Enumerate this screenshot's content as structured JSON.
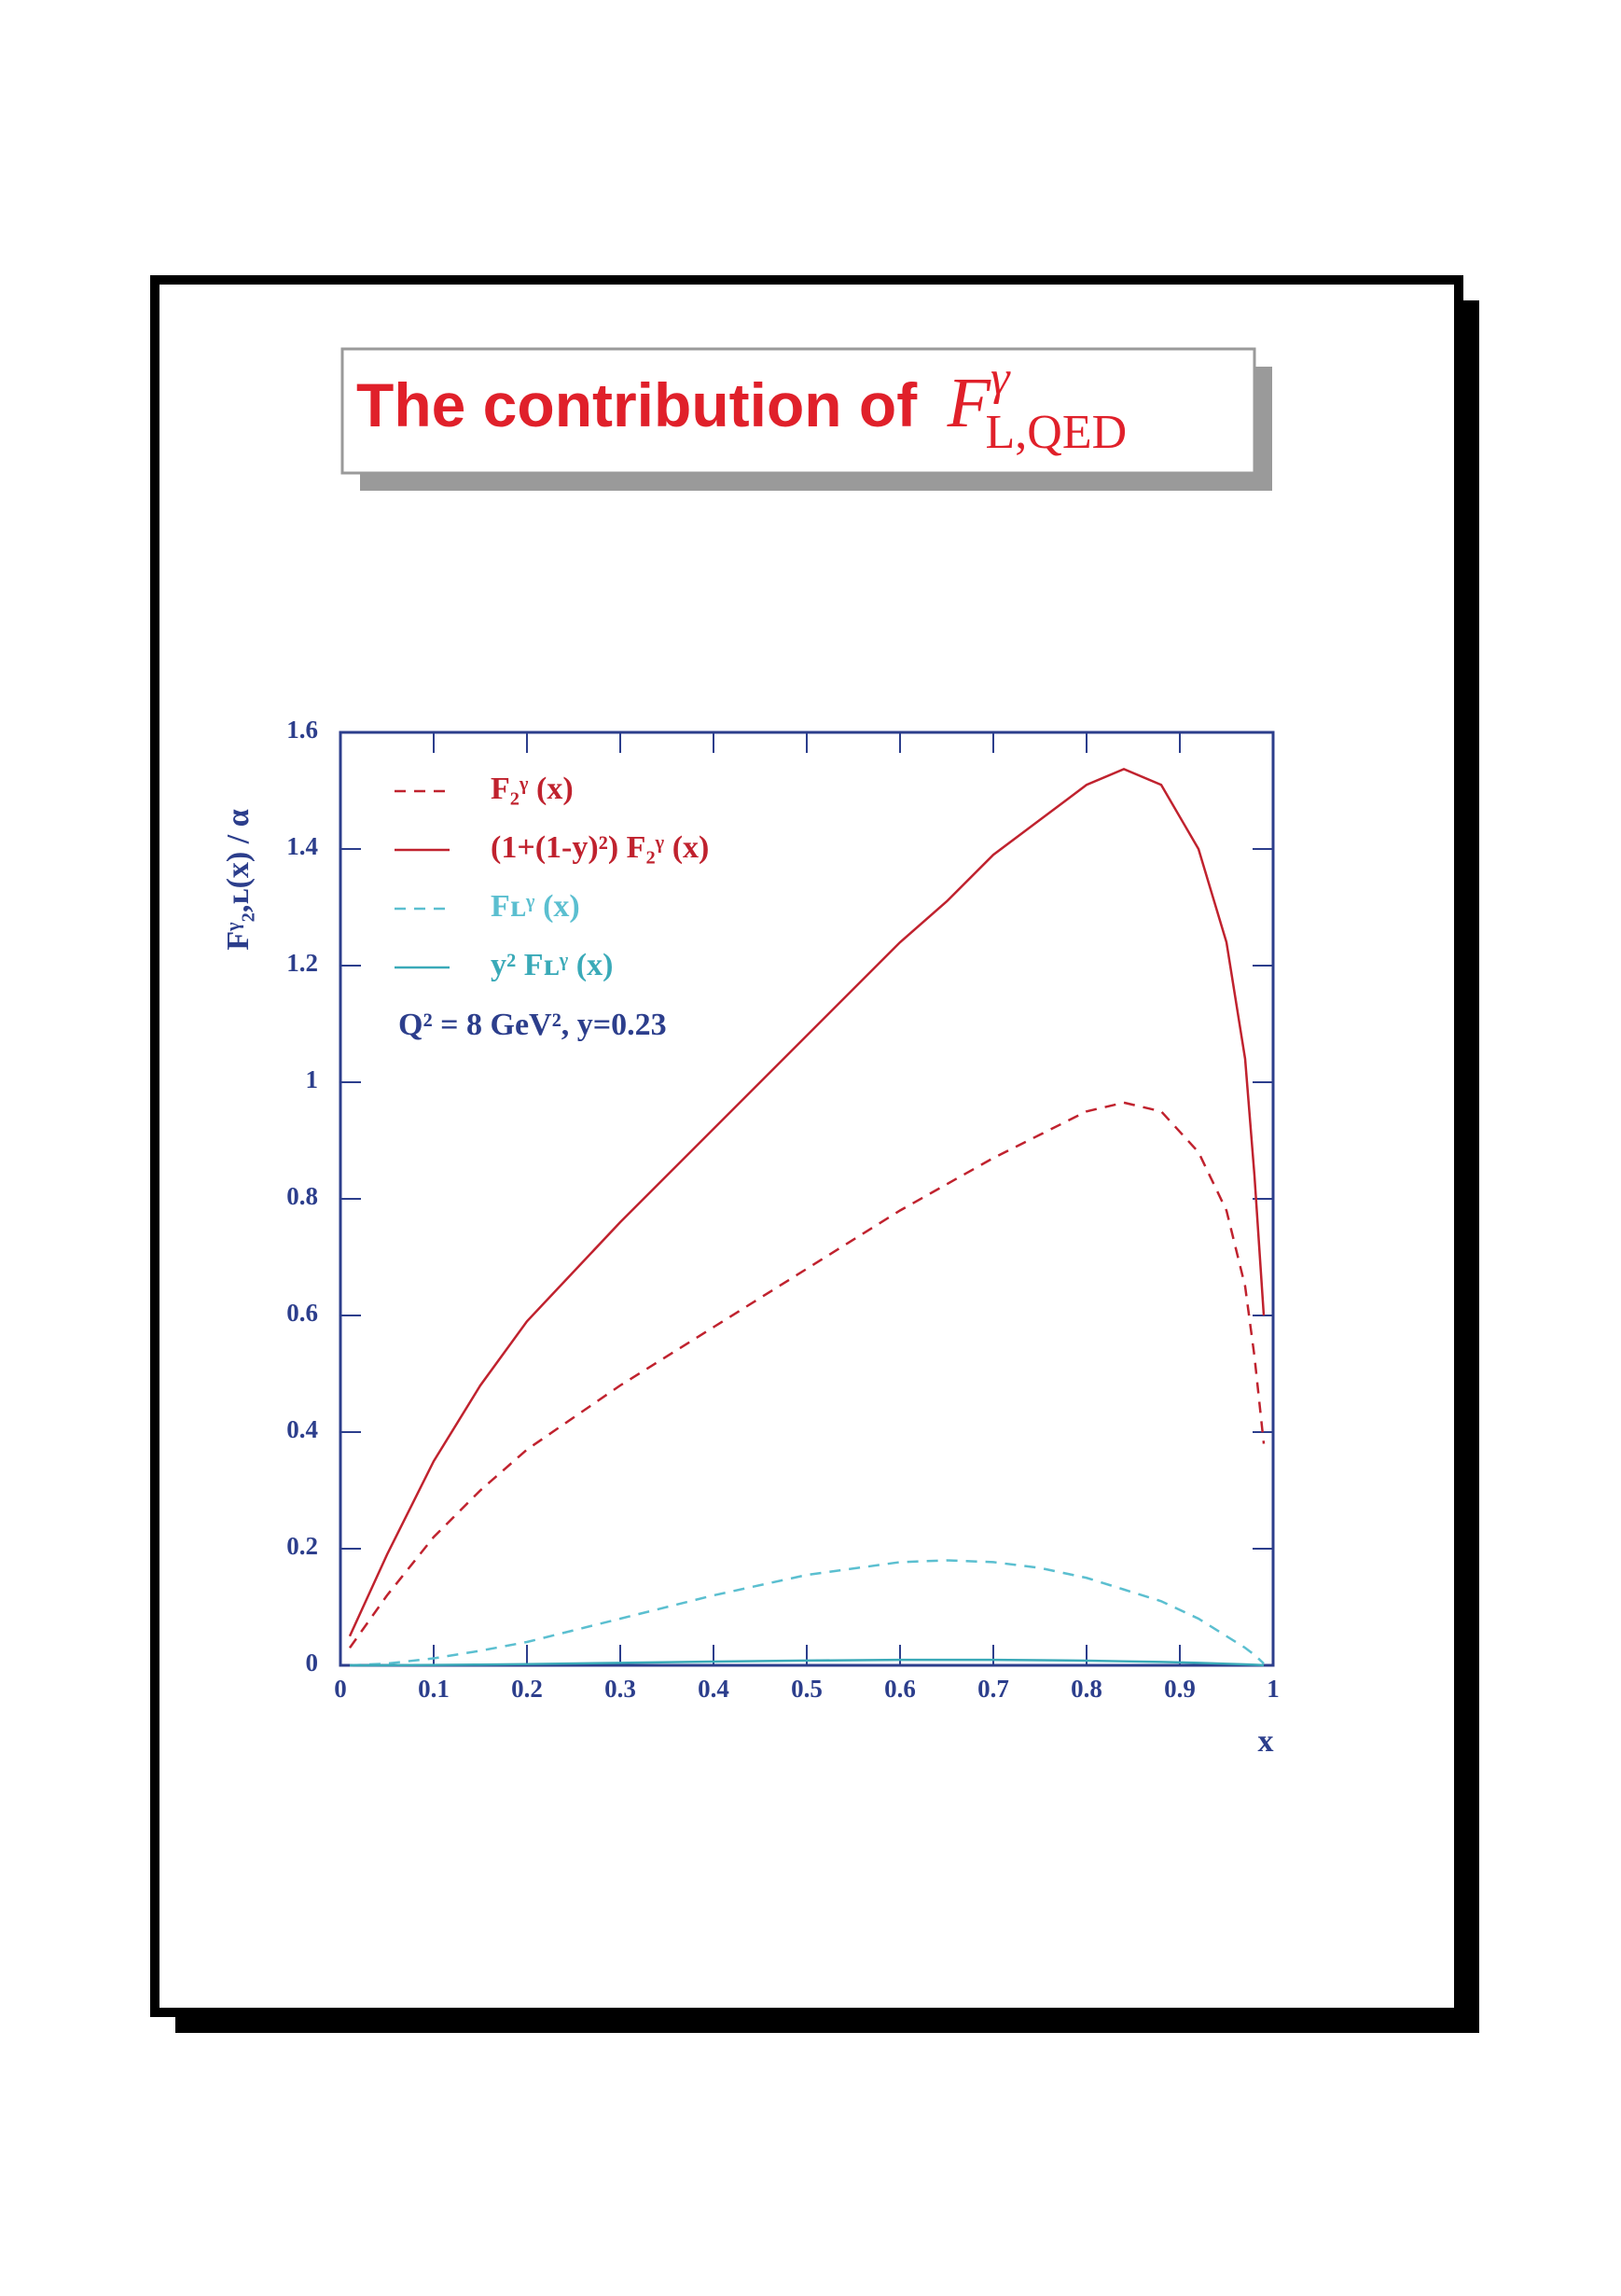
{
  "title": "The contribution of",
  "title_math": {
    "base": "F",
    "sup": "γ",
    "sub": "L,QED"
  },
  "chart_data": {
    "type": "line",
    "ylabel": "Fᵞ₂,ʟ(x) / α",
    "xlabel": "x",
    "annotation": "Q² = 8 GeV²,  y=0.23",
    "x": [
      0.01,
      0.05,
      0.1,
      0.15,
      0.2,
      0.3,
      0.4,
      0.5,
      0.6,
      0.65,
      0.7,
      0.75,
      0.8,
      0.84,
      0.88,
      0.92,
      0.95,
      0.97,
      0.98,
      0.99
    ],
    "series": [
      {
        "name": "F₂ᵞ (x)",
        "color": "#c0222e",
        "dash": true,
        "values": [
          0.03,
          0.12,
          0.22,
          0.3,
          0.37,
          0.48,
          0.58,
          0.68,
          0.78,
          0.825,
          0.87,
          0.91,
          0.95,
          0.965,
          0.95,
          0.88,
          0.78,
          0.65,
          0.53,
          0.38
        ]
      },
      {
        "name": "(1+(1-y)²) F₂ᵞ (x)",
        "color": "#c0222e",
        "dash": false,
        "values": [
          0.05,
          0.19,
          0.35,
          0.48,
          0.59,
          0.76,
          0.92,
          1.08,
          1.24,
          1.31,
          1.39,
          1.45,
          1.51,
          1.537,
          1.51,
          1.4,
          1.24,
          1.04,
          0.84,
          0.6
        ]
      },
      {
        "name": "Fʟᵞ (x)",
        "color": "#5bbfd0",
        "dash": true,
        "values": [
          0.0,
          0.003,
          0.012,
          0.025,
          0.04,
          0.08,
          0.12,
          0.155,
          0.177,
          0.18,
          0.177,
          0.167,
          0.15,
          0.13,
          0.11,
          0.08,
          0.05,
          0.03,
          0.018,
          0.003
        ]
      },
      {
        "name": "y² Fʟᵞ (x)",
        "color": "#3aaab8",
        "dash": false,
        "values": [
          0.0,
          0.0002,
          0.0006,
          0.0013,
          0.0021,
          0.0042,
          0.0064,
          0.0082,
          0.0094,
          0.0095,
          0.0094,
          0.0088,
          0.008,
          0.0069,
          0.0058,
          0.0042,
          0.0027,
          0.0016,
          0.001,
          0.0002
        ]
      }
    ],
    "xlim": [
      0,
      1
    ],
    "ylim": [
      0,
      1.6
    ],
    "xticks": [
      0,
      0.1,
      0.2,
      0.3,
      0.4,
      0.5,
      0.6,
      0.7,
      0.8,
      0.9,
      1
    ],
    "yticks": [
      0,
      0.2,
      0.4,
      0.6,
      0.8,
      1,
      1.2,
      1.4,
      1.6
    ],
    "axis_color": "#2c3e8c",
    "legend": "upper left"
  }
}
